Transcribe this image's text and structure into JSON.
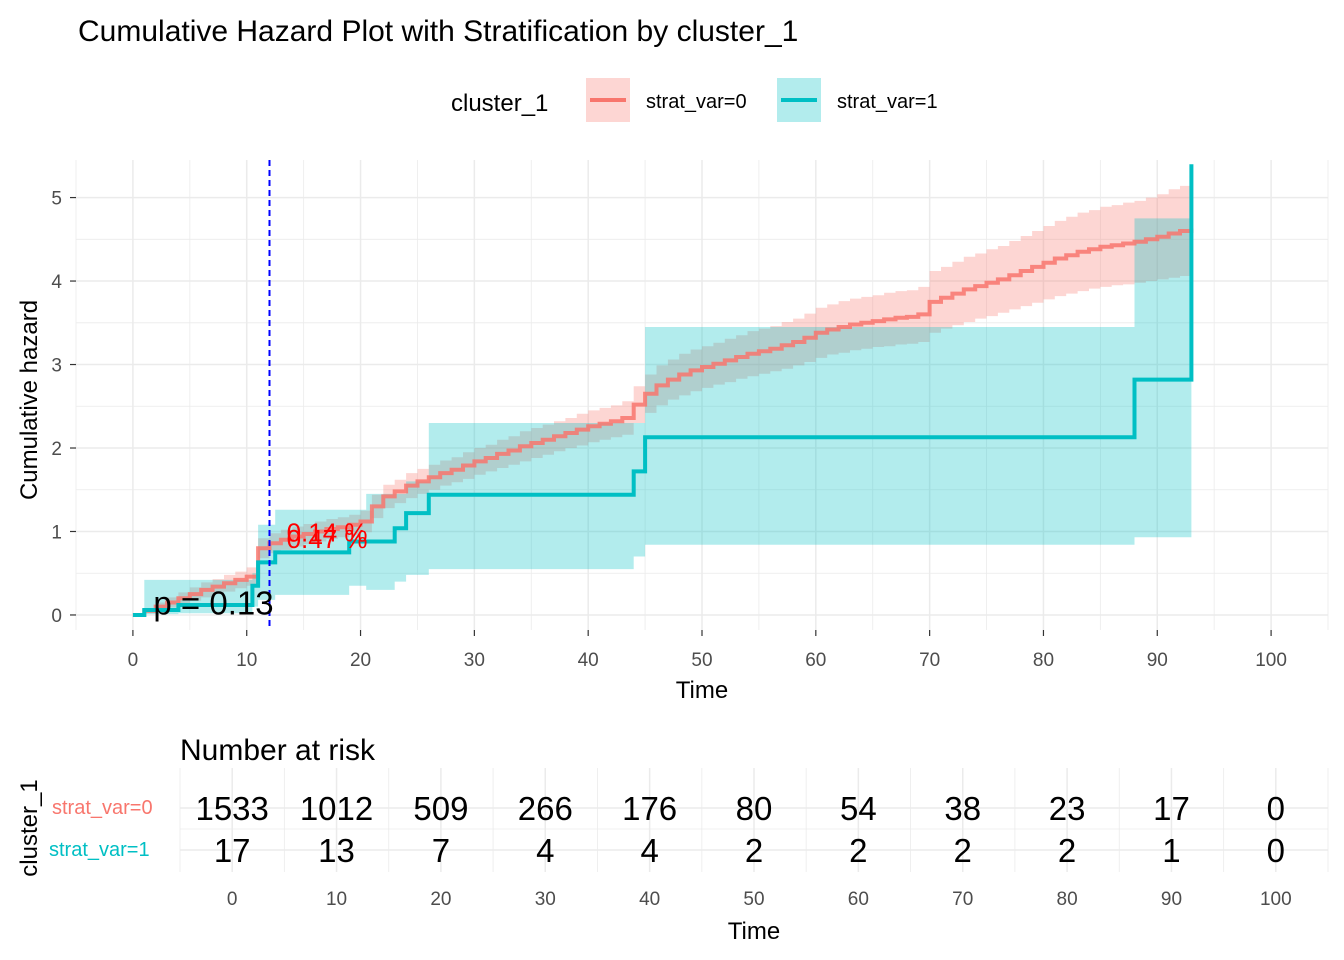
{
  "chart_data": {
    "type": "line",
    "title": "Cumulative Hazard Plot with Stratification by cluster_1",
    "xlabel": "Time",
    "ylabel": "Cumulative hazard",
    "xlim": [
      -5,
      105
    ],
    "ylim": [
      -0.18,
      5.45
    ],
    "x_ticks": [
      0,
      10,
      20,
      30,
      40,
      50,
      60,
      70,
      80,
      90,
      100
    ],
    "y_ticks": [
      0,
      1,
      2,
      3,
      4,
      5
    ],
    "grid": true,
    "legend": {
      "title": "cluster_1",
      "placement": "top",
      "entries": [
        "strat_var=0",
        "strat_var=1"
      ]
    },
    "vline": {
      "x": 12,
      "color": "#0000FF",
      "style": "dashed"
    },
    "annotations": [
      {
        "text": "p = 0.13",
        "x": 1.8,
        "y": 0.15,
        "color": "#000000"
      },
      {
        "text": "0.14 %",
        "x": 13.5,
        "y": 1.0,
        "color": "#FF0000"
      },
      {
        "text": "0.47 %",
        "x": 13.5,
        "y": 0.92,
        "color": "#FF0000"
      }
    ],
    "series": [
      {
        "name": "strat_var=0",
        "color": "#F8766D",
        "x": [
          0,
          1,
          2,
          3,
          4,
          5,
          6,
          7,
          8,
          9,
          10,
          11,
          12,
          13,
          14,
          15,
          16,
          17,
          18,
          19,
          20,
          21,
          22,
          23,
          24,
          25,
          26,
          27,
          28,
          29,
          30,
          31,
          32,
          33,
          34,
          35,
          36,
          37,
          38,
          39,
          40,
          41,
          42,
          43,
          44,
          45,
          46,
          47,
          48,
          49,
          50,
          51,
          52,
          53,
          54,
          55,
          56,
          57,
          58,
          59,
          60,
          61,
          62,
          63,
          64,
          65,
          66,
          67,
          68,
          69,
          70,
          71,
          72,
          73,
          74,
          75,
          76,
          77,
          78,
          79,
          80,
          81,
          82,
          83,
          84,
          85,
          86,
          87,
          88,
          89,
          90,
          91,
          92,
          93
        ],
        "y": [
          0,
          0.05,
          0.1,
          0.15,
          0.2,
          0.25,
          0.3,
          0.34,
          0.38,
          0.42,
          0.46,
          0.8,
          0.86,
          0.9,
          0.94,
          0.97,
          1.0,
          1.03,
          1.05,
          1.08,
          1.12,
          1.3,
          1.42,
          1.48,
          1.55,
          1.6,
          1.65,
          1.7,
          1.74,
          1.79,
          1.84,
          1.88,
          1.93,
          1.97,
          2.02,
          2.06,
          2.1,
          2.14,
          2.18,
          2.22,
          2.26,
          2.29,
          2.32,
          2.36,
          2.52,
          2.65,
          2.75,
          2.82,
          2.88,
          2.93,
          2.97,
          3.01,
          3.05,
          3.09,
          3.13,
          3.16,
          3.19,
          3.23,
          3.27,
          3.32,
          3.38,
          3.42,
          3.45,
          3.48,
          3.5,
          3.52,
          3.54,
          3.56,
          3.57,
          3.6,
          3.75,
          3.8,
          3.85,
          3.9,
          3.94,
          3.98,
          4.02,
          4.07,
          4.12,
          4.17,
          4.22,
          4.27,
          4.31,
          4.35,
          4.38,
          4.41,
          4.43,
          4.45,
          4.47,
          4.5,
          4.53,
          4.57,
          4.6,
          4.63
        ],
        "lower": [
          0,
          0.02,
          0.05,
          0.09,
          0.13,
          0.17,
          0.21,
          0.25,
          0.28,
          0.32,
          0.35,
          0.68,
          0.74,
          0.78,
          0.82,
          0.85,
          0.88,
          0.91,
          0.93,
          0.96,
          0.99,
          1.16,
          1.28,
          1.34,
          1.4,
          1.45,
          1.5,
          1.55,
          1.59,
          1.63,
          1.68,
          1.72,
          1.76,
          1.8,
          1.84,
          1.88,
          1.92,
          1.96,
          2.0,
          2.03,
          2.07,
          2.1,
          2.13,
          2.16,
          2.3,
          2.42,
          2.51,
          2.58,
          2.63,
          2.68,
          2.72,
          2.76,
          2.79,
          2.83,
          2.86,
          2.89,
          2.92,
          2.95,
          2.99,
          3.03,
          3.08,
          3.12,
          3.14,
          3.17,
          3.19,
          3.21,
          3.22,
          3.24,
          3.25,
          3.27,
          3.38,
          3.43,
          3.47,
          3.51,
          3.55,
          3.58,
          3.62,
          3.66,
          3.7,
          3.74,
          3.78,
          3.82,
          3.85,
          3.88,
          3.91,
          3.93,
          3.95,
          3.96,
          3.98,
          4.0,
          4.02,
          4.04,
          4.06,
          4.08
        ],
        "upper": [
          0,
          0.08,
          0.15,
          0.21,
          0.27,
          0.33,
          0.39,
          0.43,
          0.48,
          0.52,
          0.57,
          0.92,
          0.98,
          1.02,
          1.06,
          1.09,
          1.12,
          1.15,
          1.17,
          1.2,
          1.25,
          1.44,
          1.56,
          1.62,
          1.7,
          1.75,
          1.8,
          1.85,
          1.89,
          1.95,
          2.0,
          2.04,
          2.1,
          2.14,
          2.2,
          2.24,
          2.28,
          2.32,
          2.36,
          2.41,
          2.45,
          2.48,
          2.51,
          2.56,
          2.74,
          2.88,
          2.99,
          3.06,
          3.13,
          3.18,
          3.22,
          3.26,
          3.31,
          3.35,
          3.4,
          3.43,
          3.46,
          3.51,
          3.55,
          3.61,
          3.68,
          3.72,
          3.76,
          3.79,
          3.81,
          3.83,
          3.86,
          3.88,
          3.89,
          3.93,
          4.12,
          4.17,
          4.23,
          4.29,
          4.33,
          4.38,
          4.42,
          4.48,
          4.54,
          4.6,
          4.66,
          4.72,
          4.77,
          4.82,
          4.85,
          4.89,
          4.91,
          4.94,
          4.96,
          5.0,
          5.04,
          5.1,
          5.14,
          5.18
        ]
      },
      {
        "name": "strat_var=1",
        "color": "#00BFC4",
        "x": [
          0,
          1,
          4,
          10.5,
          11,
          12.5,
          19,
          20.5,
          23,
          24,
          26,
          44,
          45,
          88,
          93,
          93
        ],
        "y": [
          0,
          0.06,
          0.12,
          0.35,
          0.63,
          0.75,
          0.88,
          0.88,
          1.04,
          1.22,
          1.44,
          1.72,
          2.13,
          2.82,
          2.82,
          5.4
        ],
        "lower": [
          0,
          0.01,
          0.02,
          0.1,
          0.18,
          0.24,
          0.35,
          0.3,
          0.4,
          0.48,
          0.55,
          0.7,
          0.84,
          0.93,
          0.93,
          0.93
        ],
        "upper": [
          0,
          0.42,
          0.42,
          0.5,
          1.08,
          1.26,
          1.26,
          1.45,
          1.45,
          1.6,
          2.3,
          2.3,
          3.45,
          4.75,
          4.75,
          4.75
        ]
      }
    ],
    "risk_table": {
      "title": "Number at risk",
      "ylabel": "cluster_1",
      "xlabel": "Time",
      "times": [
        0,
        10,
        20,
        30,
        40,
        50,
        60,
        70,
        80,
        90,
        100
      ],
      "rows": [
        {
          "label": "strat_var=0",
          "color": "#F8766D",
          "values": [
            1533,
            1012,
            509,
            266,
            176,
            80,
            54,
            38,
            23,
            17,
            0
          ]
        },
        {
          "label": "strat_var=1",
          "color": "#00BFC4",
          "values": [
            17,
            13,
            7,
            4,
            4,
            2,
            2,
            2,
            2,
            1,
            0
          ]
        }
      ]
    }
  }
}
